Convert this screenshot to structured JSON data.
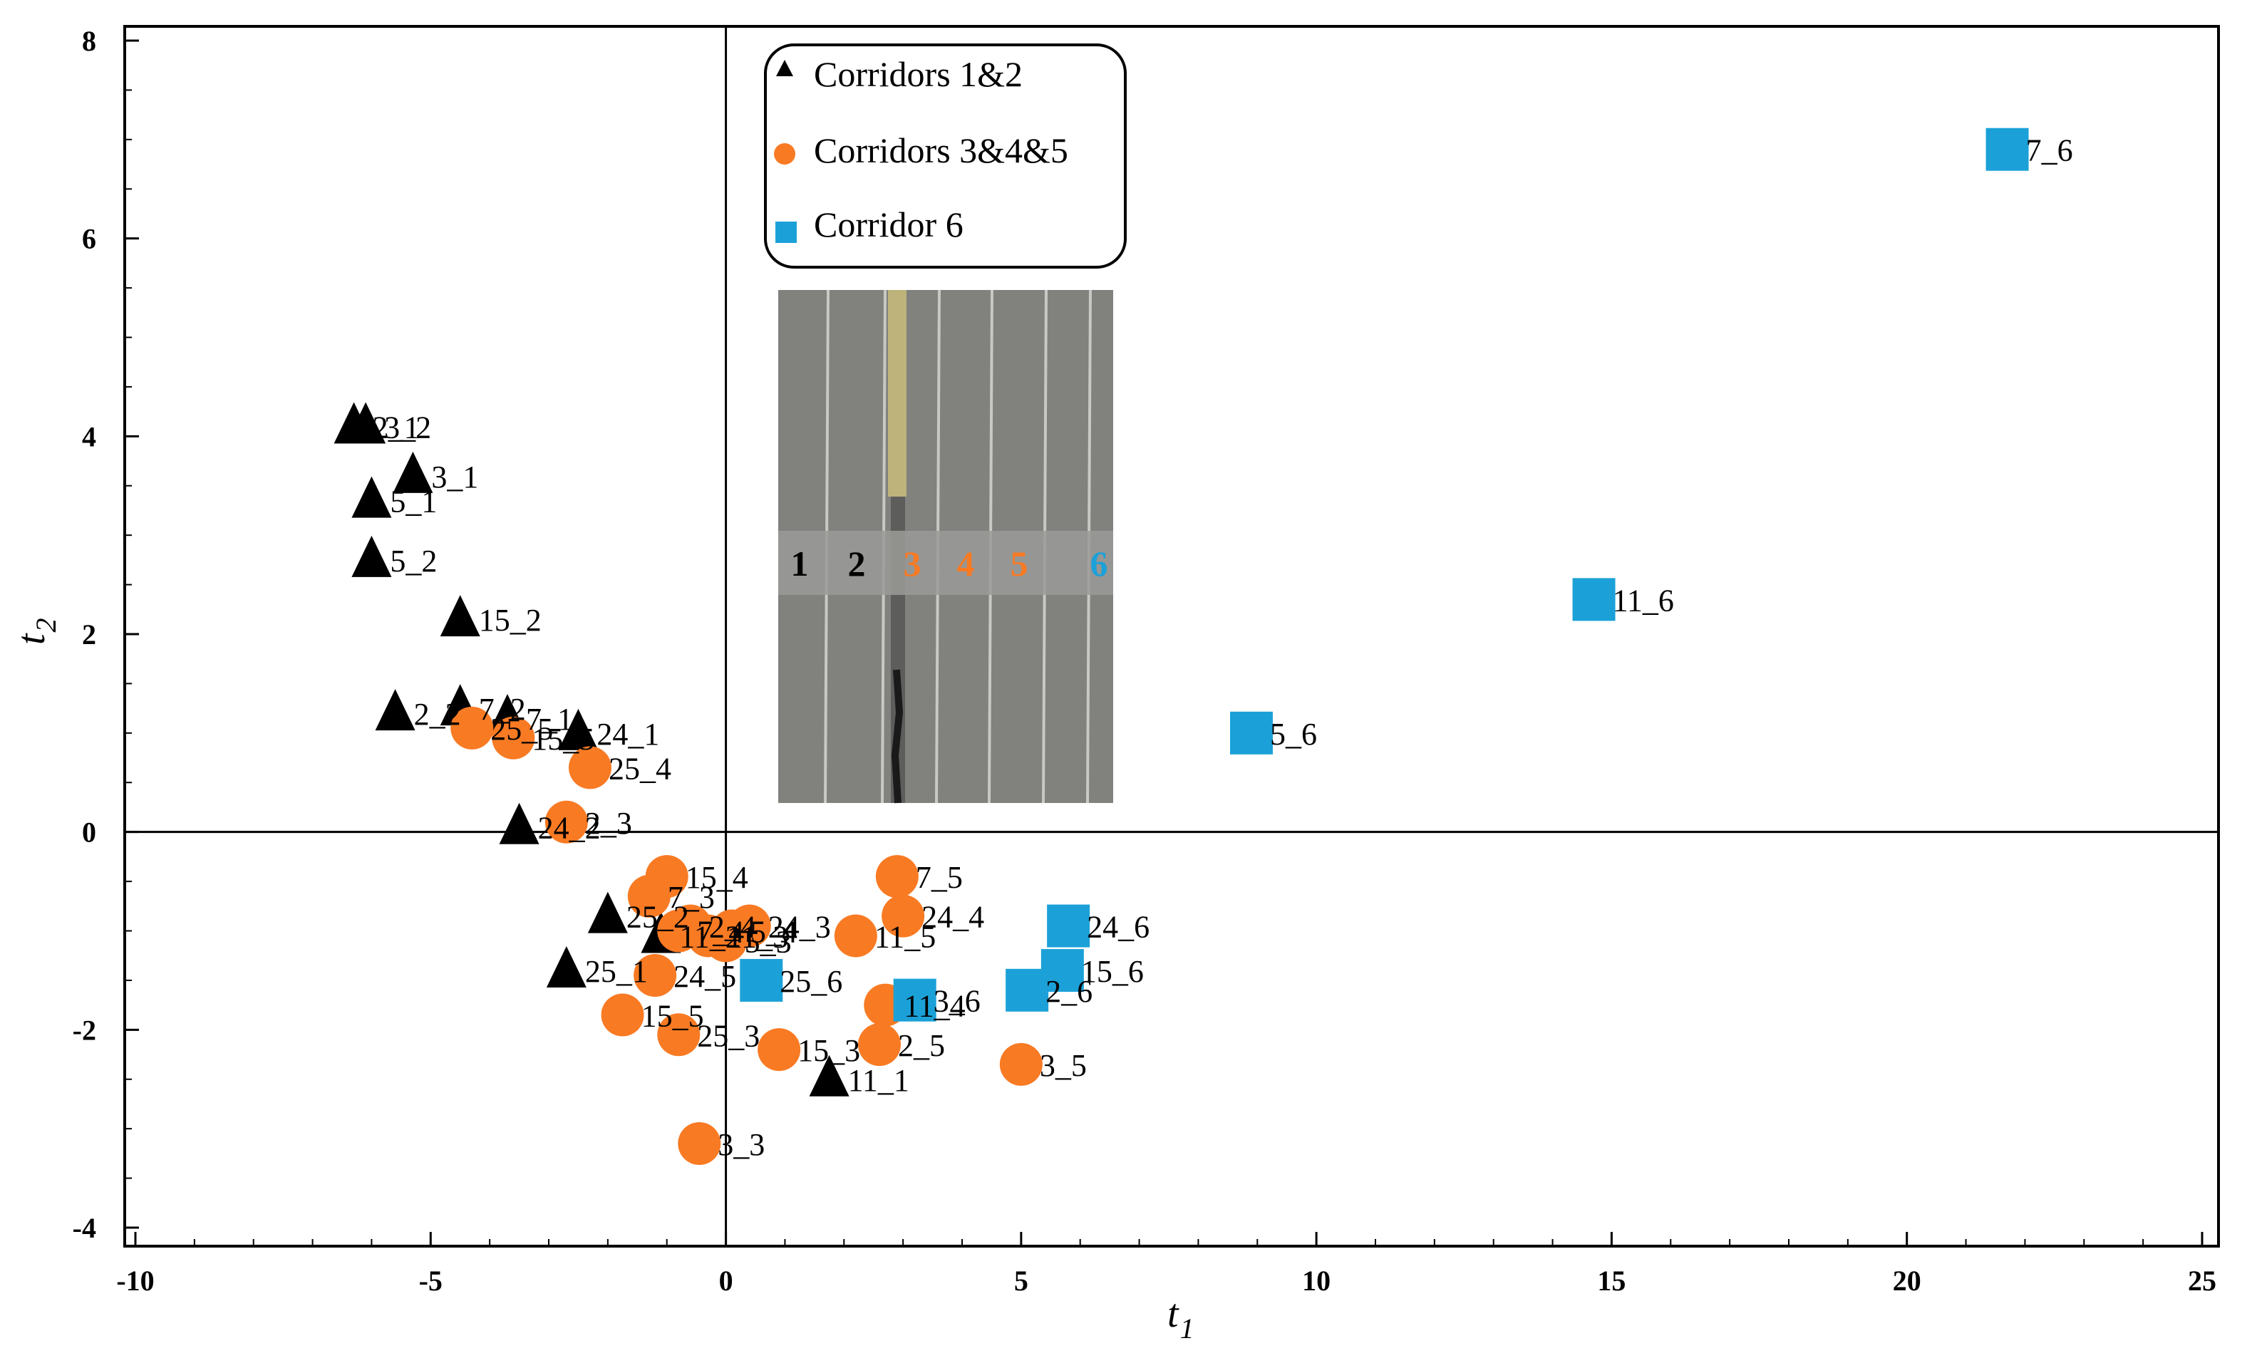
{
  "chart_data": {
    "type": "scatter",
    "title": "",
    "xlabel": "t",
    "xlabel_sub": "1",
    "ylabel": "t",
    "ylabel_sub": "2",
    "xlim": [
      -10,
      25
    ],
    "ylim": [
      -4,
      8
    ],
    "xticks": [
      -10,
      -5,
      0,
      5,
      10,
      15,
      20,
      25
    ],
    "yticks": [
      -4,
      -2,
      0,
      2,
      4,
      6,
      8
    ],
    "xtick_labels": [
      "-10",
      "-5",
      "0",
      "5",
      "10",
      "15",
      "20",
      "25"
    ],
    "ytick_labels": [
      "-4",
      "-2",
      "0",
      "2",
      "4",
      "6",
      "8"
    ],
    "grid": false,
    "legend_position": "top-center",
    "series": [
      {
        "name": "Corridors 1&2",
        "marker": "triangle",
        "color": "#000000",
        "points": [
          {
            "label": "2_1",
            "x": -6.3,
            "y": 4.1
          },
          {
            "label": "3_2",
            "x": -6.1,
            "y": 4.1
          },
          {
            "label": "3_1",
            "x": -5.3,
            "y": 3.6
          },
          {
            "label": "5_1",
            "x": -6.0,
            "y": 3.35
          },
          {
            "label": "5_2",
            "x": -6.0,
            "y": 2.75
          },
          {
            "label": "15_2",
            "x": -4.5,
            "y": 2.15
          },
          {
            "label": "2_2",
            "x": -5.6,
            "y": 1.2
          },
          {
            "label": "7_2",
            "x": -4.5,
            "y": 1.25
          },
          {
            "label": "7_1",
            "x": -3.7,
            "y": 1.15
          },
          {
            "label": "24_1",
            "x": -2.5,
            "y": 1.0
          },
          {
            "label": "24_2",
            "x": -3.5,
            "y": 0.05
          },
          {
            "label": "25_2",
            "x": -2.0,
            "y": -0.85
          },
          {
            "label": "11_2",
            "x": -1.1,
            "y": -1.05
          },
          {
            "label": "25_1",
            "x": -2.7,
            "y": -1.4
          },
          {
            "label": "11_1",
            "x": 1.75,
            "y": -2.5
          }
        ]
      },
      {
        "name": "Corridors 3&4&5",
        "marker": "circle",
        "color": "#F87A23",
        "points": [
          {
            "label": "25_5",
            "x": -4.3,
            "y": 1.05
          },
          {
            "label": "15_5",
            "x": -3.6,
            "y": 0.95
          },
          {
            "label": "25_4",
            "x": -2.3,
            "y": 0.65
          },
          {
            "label": "2_3",
            "x": -2.7,
            "y": 0.1
          },
          {
            "label": "15_4",
            "x": -1.0,
            "y": -0.45
          },
          {
            "label": "7_3",
            "x": -1.3,
            "y": -0.65
          },
          {
            "label": "2_4",
            "x": -0.6,
            "y": -0.95
          },
          {
            "label": "24_3",
            "x": 0.4,
            "y": -0.95
          },
          {
            "label": "5_4",
            "x": 0.1,
            "y": -1.0
          },
          {
            "label": "11_3",
            "x": -0.3,
            "y": -1.05
          },
          {
            "label": "5_3",
            "x": 0.0,
            "y": -1.1
          },
          {
            "label": "7_4",
            "x": -0.8,
            "y": -1.0
          },
          {
            "label": "7_5",
            "x": 2.9,
            "y": -0.45
          },
          {
            "label": "24_4",
            "x": 3.0,
            "y": -0.85
          },
          {
            "label": "11_5",
            "x": 2.2,
            "y": -1.05
          },
          {
            "label": "24_5",
            "x": -1.2,
            "y": -1.45
          },
          {
            "label": "15_5",
            "x": -1.75,
            "y": -1.85
          },
          {
            "label": "25_3",
            "x": -0.8,
            "y": -2.05
          },
          {
            "label": "15_3",
            "x": 0.9,
            "y": -2.2
          },
          {
            "label": "11_4",
            "x": 2.7,
            "y": -1.75
          },
          {
            "label": "2_5",
            "x": 2.6,
            "y": -2.15
          },
          {
            "label": "3_5",
            "x": 5.0,
            "y": -2.35
          },
          {
            "label": "3_3",
            "x": -0.45,
            "y": -3.15
          }
        ]
      },
      {
        "name": "Corridor 6",
        "marker": "square",
        "color": "#1BA1D8",
        "points": [
          {
            "label": "7_6",
            "x": 21.7,
            "y": 6.9
          },
          {
            "label": "11_6",
            "x": 14.7,
            "y": 2.35
          },
          {
            "label": "5_6",
            "x": 8.9,
            "y": 1.0
          },
          {
            "label": "24_6",
            "x": 5.8,
            "y": -0.95
          },
          {
            "label": "15_6",
            "x": 5.7,
            "y": -1.4
          },
          {
            "label": "2_6",
            "x": 5.1,
            "y": -1.6
          },
          {
            "label": "3_6",
            "x": 3.2,
            "y": -1.7
          },
          {
            "label": "25_6",
            "x": 0.6,
            "y": -1.5
          }
        ]
      }
    ],
    "inset_photo": {
      "lane_labels": [
        {
          "text": "1",
          "color": "#000000"
        },
        {
          "text": "2",
          "color": "#000000"
        },
        {
          "text": "3",
          "color": "#F87A23"
        },
        {
          "text": "4",
          "color": "#F87A23"
        },
        {
          "text": "5",
          "color": "#F87A23"
        },
        {
          "text": "6",
          "color": "#1BA1D8"
        }
      ]
    }
  }
}
